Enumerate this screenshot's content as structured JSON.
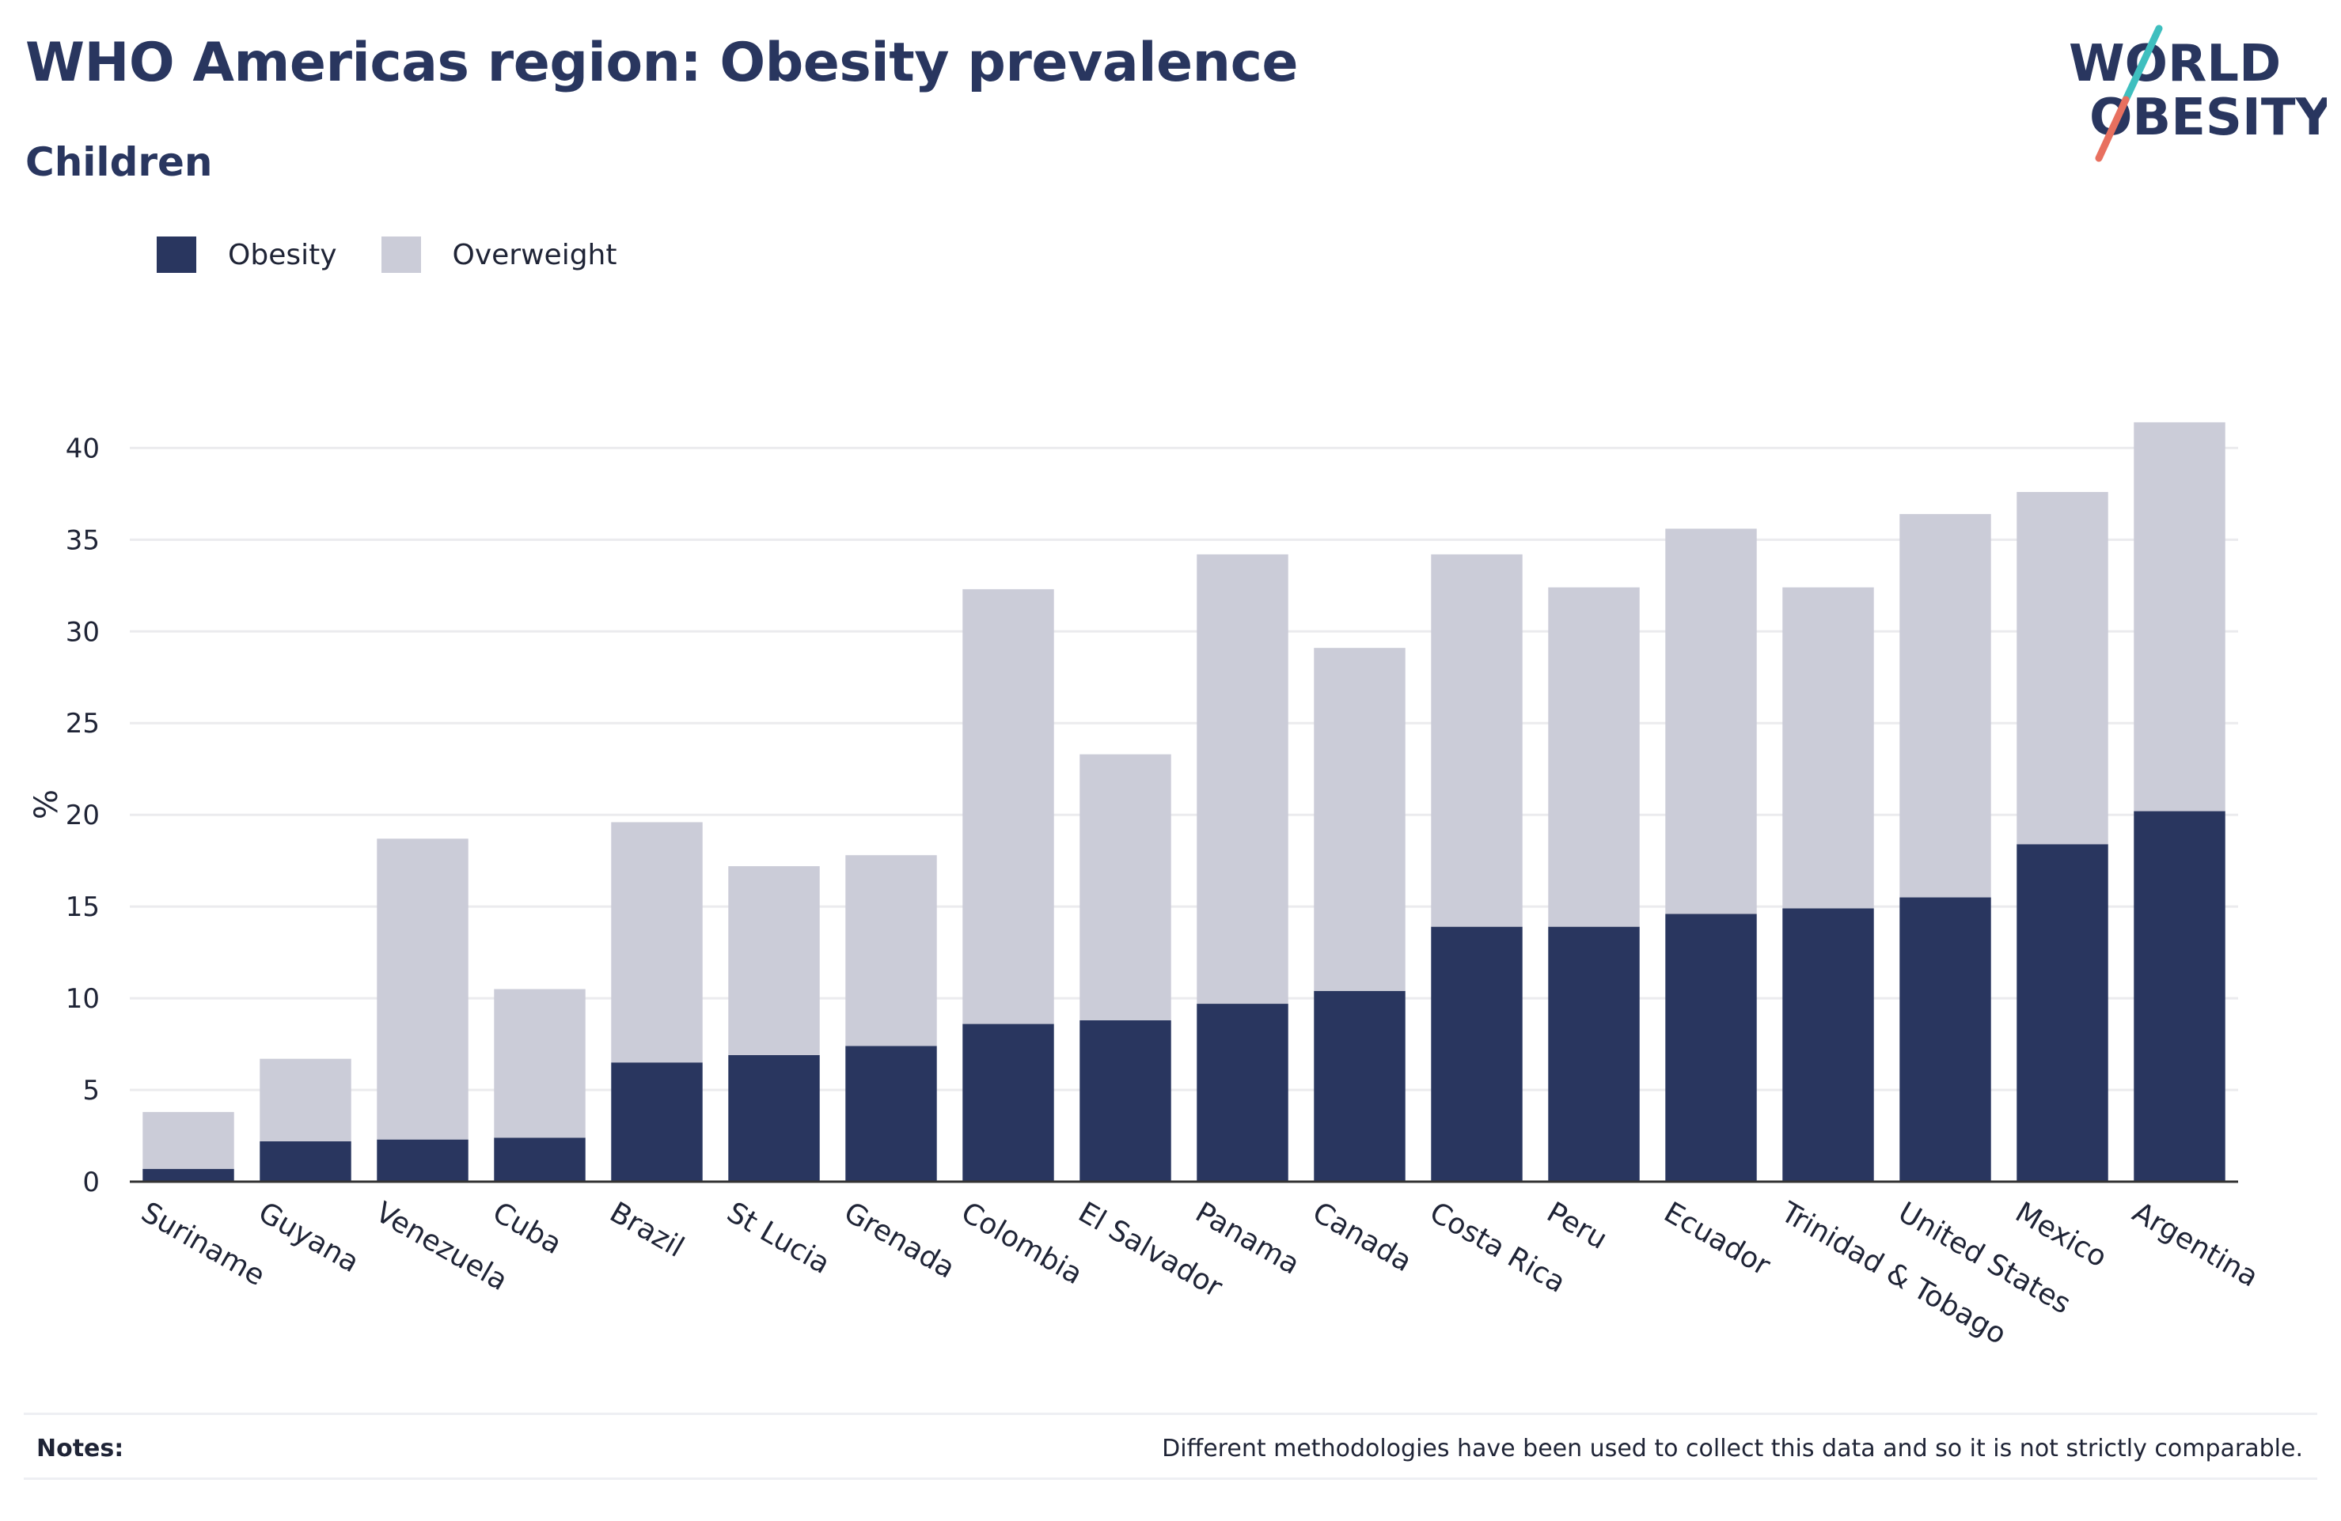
{
  "header": {
    "title": "WHO Americas region: Obesity prevalence",
    "subtitle": "Children"
  },
  "logo": {
    "line1": "WORLD",
    "line2": "OBESITY",
    "text_color": "#29365f",
    "slash_colors": [
      "#3fbfbf",
      "#e8705f"
    ]
  },
  "legend": {
    "items": [
      {
        "label": "Obesity",
        "color": "#29365f"
      },
      {
        "label": "Overweight",
        "color": "#cbccd8"
      }
    ]
  },
  "chart_data": {
    "type": "bar",
    "stacked": true,
    "categories": [
      "Suriname",
      "Guyana",
      "Venezuela",
      "Cuba",
      "Brazil",
      "St Lucia",
      "Grenada",
      "Colombia",
      "El Salvador",
      "Panama",
      "Canada",
      "Costa Rica",
      "Peru",
      "Ecuador",
      "Trinidad & Tobago",
      "United States",
      "Mexico",
      "Argentina"
    ],
    "series": [
      {
        "name": "Obesity",
        "color": "#29365f",
        "values": [
          0.7,
          2.2,
          2.3,
          2.4,
          6.5,
          6.9,
          7.4,
          8.6,
          8.8,
          9.7,
          10.4,
          13.9,
          13.9,
          14.6,
          14.9,
          15.5,
          18.4,
          20.2
        ]
      },
      {
        "name": "Overweight",
        "color": "#cbccd8",
        "values": [
          3.1,
          4.5,
          16.4,
          8.1,
          13.1,
          10.3,
          10.4,
          23.7,
          14.5,
          24.5,
          18.7,
          20.3,
          18.5,
          21.0,
          17.5,
          20.9,
          19.2,
          21.2
        ]
      }
    ],
    "title": "WHO Americas region: Obesity prevalence",
    "subtitle": "Children",
    "xlabel": "",
    "ylabel": "%",
    "ylim": [
      0,
      42
    ],
    "yticks": [
      0,
      5,
      10,
      15,
      20,
      25,
      30,
      35,
      40
    ],
    "grid": true,
    "legend_position": "top-left"
  },
  "notes": {
    "label": "Notes:",
    "text": "Different methodologies have been used to collect this data and so it is not strictly comparable."
  }
}
